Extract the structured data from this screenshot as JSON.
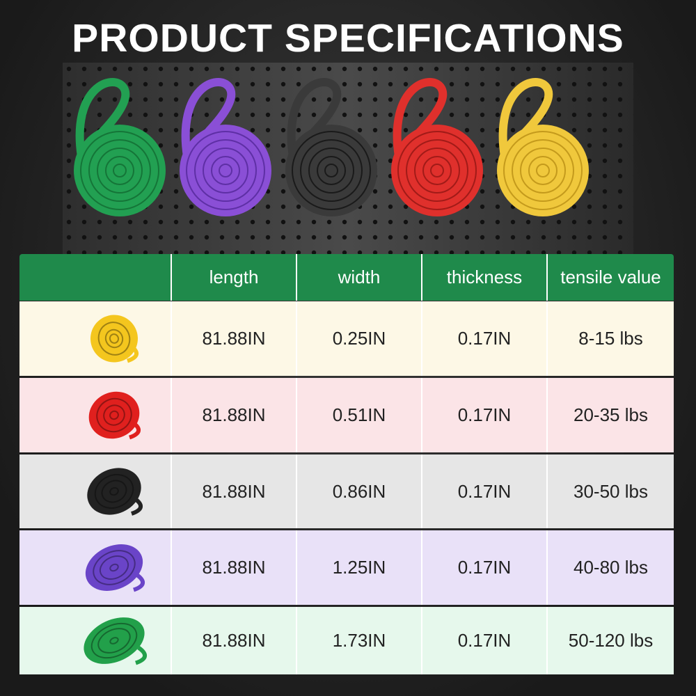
{
  "header": {
    "title": "PRODUCT SPECIFICATIONS"
  },
  "table": {
    "columns": [
      "length",
      "width",
      "thickness",
      "tensile value"
    ],
    "rows": [
      [
        "81.88IN",
        "0.25IN",
        "0.17IN",
        "8-15 lbs"
      ],
      [
        "81.88IN",
        "0.51IN",
        "0.17IN",
        "20-35 lbs"
      ],
      [
        "81.88IN",
        "0.86IN",
        "0.17IN",
        "30-50 lbs"
      ],
      [
        "81.88IN",
        "1.25IN",
        "0.17IN",
        "40-80 lbs"
      ],
      [
        "81.88IN",
        "1.73IN",
        "0.17IN",
        "50-120 lbs"
      ]
    ]
  }
}
